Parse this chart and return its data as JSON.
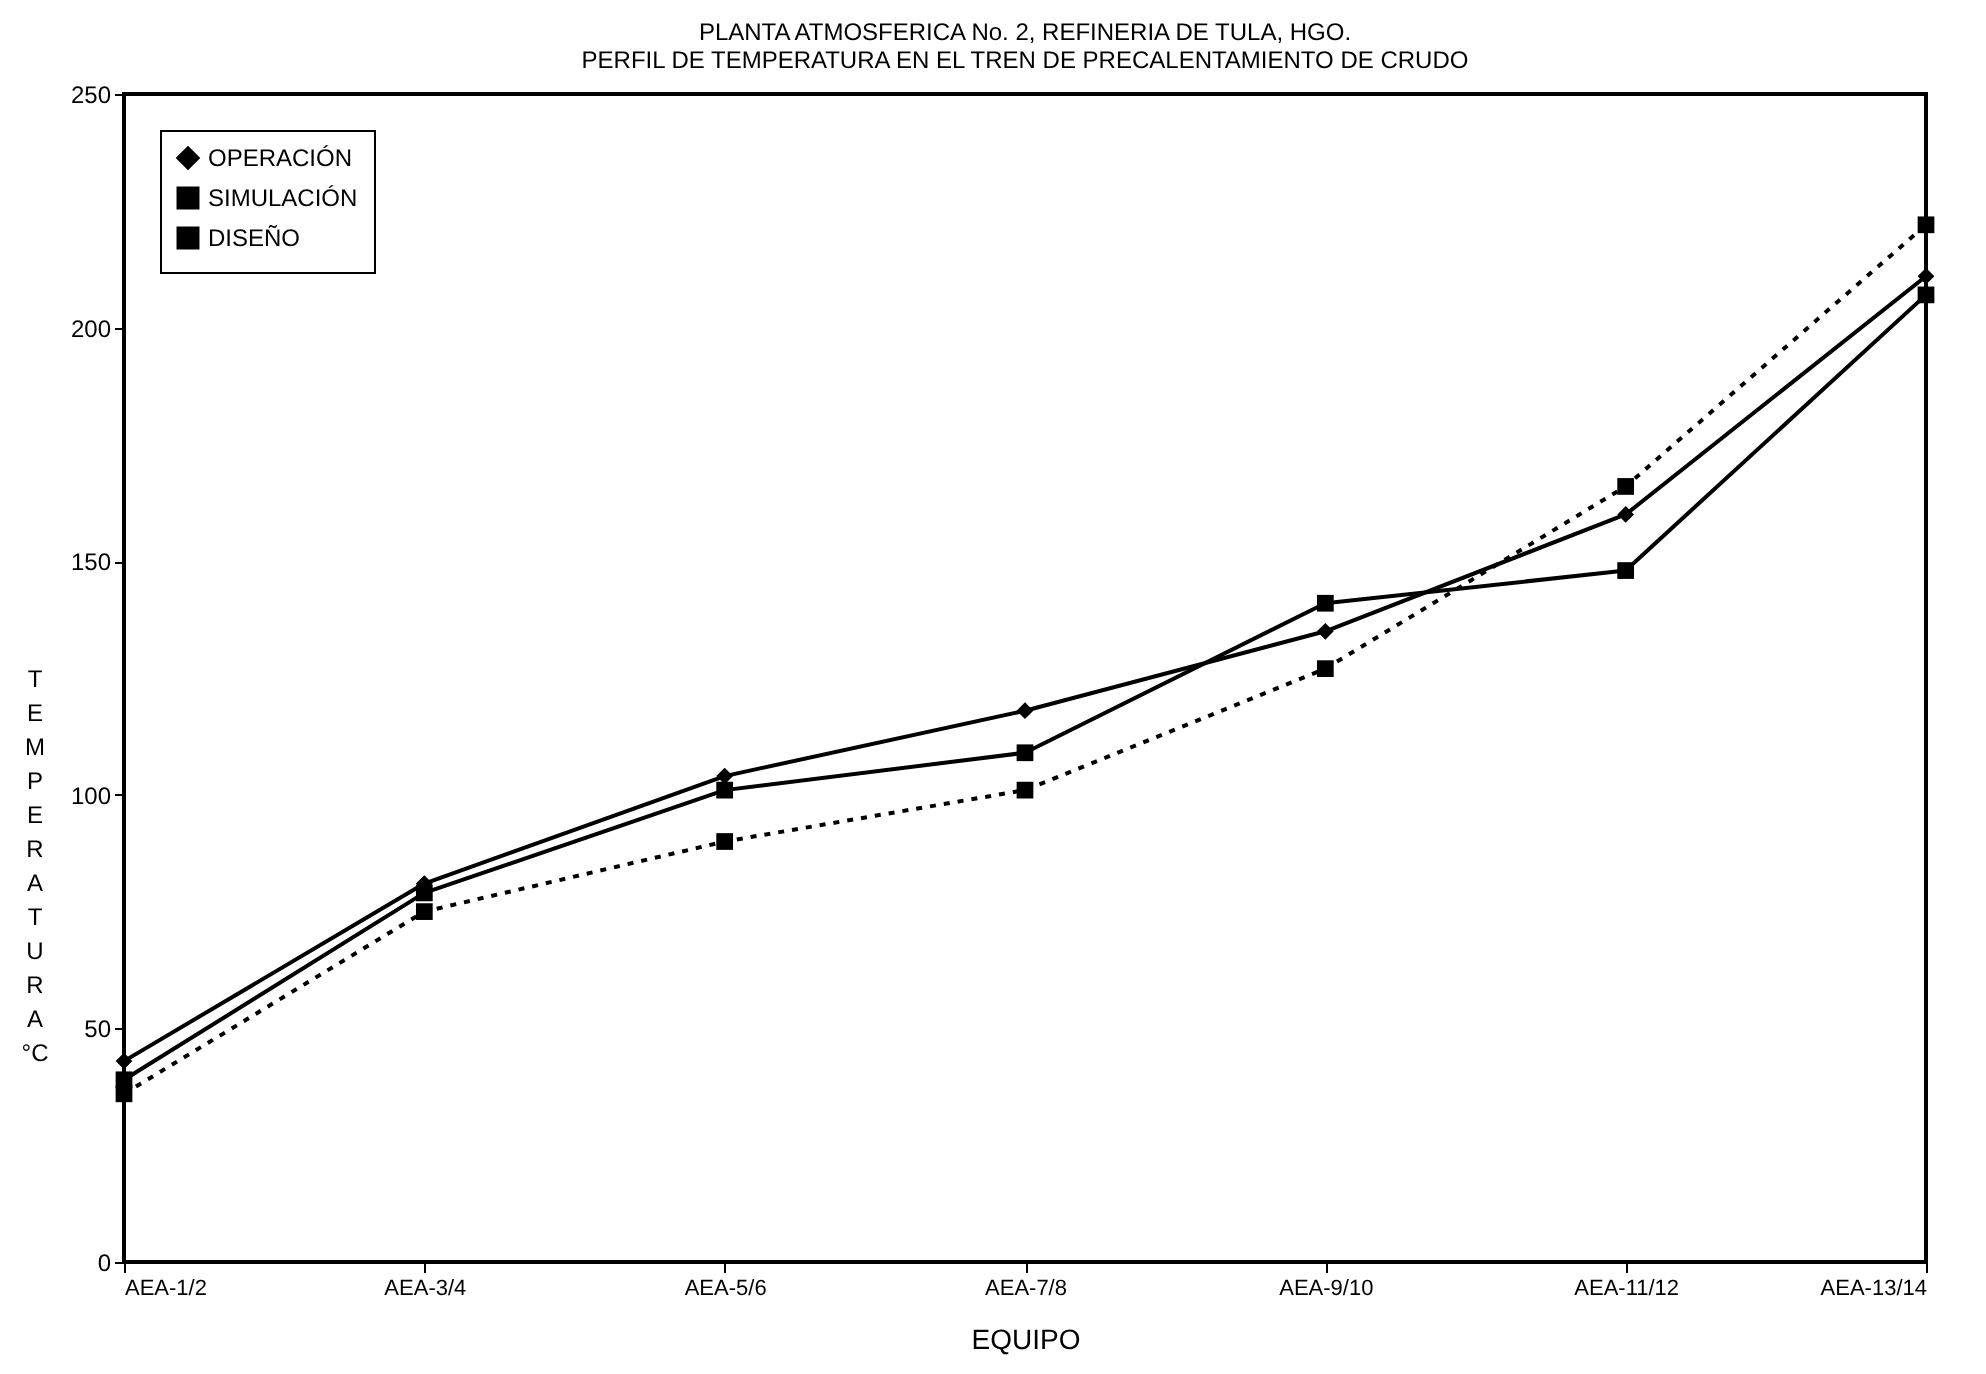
{
  "chart_data": {
    "type": "line",
    "title": [
      "PLANTA ATMOSFERICA No. 2, REFINERIA DE TULA, HGO.",
      "PERFIL DE TEMPERATURA EN EL TREN DE PRECALENTAMIENTO DE CRUDO"
    ],
    "xlabel": "EQUIPO",
    "ylabel": "TEMPERATURA °C",
    "categories": [
      "AEA-1/2",
      "AEA-3/4",
      "AEA-5/6",
      "AEA-7/8",
      "AEA-9/10",
      "AEA-11/12",
      "AEA-13/14"
    ],
    "series": [
      {
        "name": "OPERACIÓN",
        "color": "#000000",
        "marker": "diamond",
        "line_style": "solid",
        "values": [
          43,
          81,
          104,
          118,
          135,
          160,
          211
        ]
      },
      {
        "name": "SIMULACIÓN",
        "color": "#000000",
        "marker": "square",
        "line_style": "solid",
        "values": [
          39,
          79,
          101,
          109,
          141,
          148,
          207
        ]
      },
      {
        "name": "DISEÑO",
        "color": "#000000",
        "marker": "square",
        "line_style": "dotted",
        "values": [
          36,
          75,
          90,
          101,
          127,
          166,
          222
        ]
      }
    ],
    "ylim": [
      0,
      250
    ],
    "yticks": [
      0,
      50,
      100,
      150,
      200,
      250
    ],
    "grid": false,
    "legend": "top left"
  }
}
